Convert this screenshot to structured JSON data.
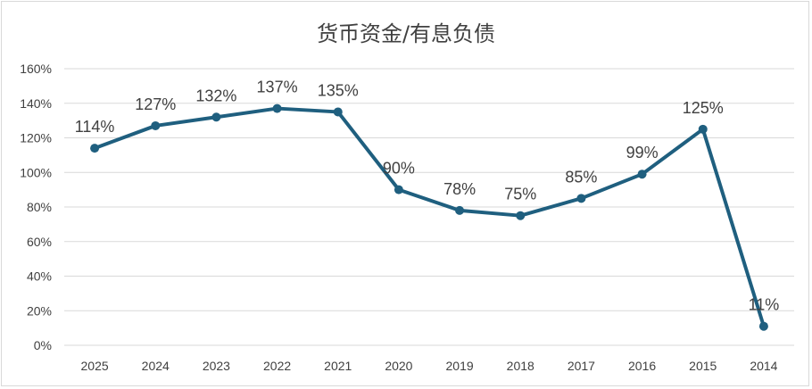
{
  "chart_data": {
    "type": "line",
    "title": "货币资金/有息负债",
    "xlabel": "",
    "ylabel": "",
    "categories": [
      "2025",
      "2024",
      "2023",
      "2022",
      "2021",
      "2020",
      "2019",
      "2018",
      "2017",
      "2016",
      "2015",
      "2014"
    ],
    "series": [
      {
        "values": [
          114,
          127,
          132,
          137,
          135,
          90,
          78,
          75,
          85,
          99,
          125,
          11
        ]
      }
    ],
    "data_labels": [
      "114%",
      "127%",
      "132%",
      "137%",
      "135%",
      "90%",
      "78%",
      "75%",
      "85%",
      "99%",
      "125%",
      "11%"
    ],
    "y_ticks": [
      "0%",
      "20%",
      "40%",
      "60%",
      "80%",
      "100%",
      "120%",
      "140%",
      "160%"
    ],
    "ylim": [
      0,
      160
    ],
    "grid": true,
    "legend": "none",
    "colors": {
      "line": "#1f5f7f",
      "grid": "#d9d9d9",
      "text": "#404040"
    }
  }
}
